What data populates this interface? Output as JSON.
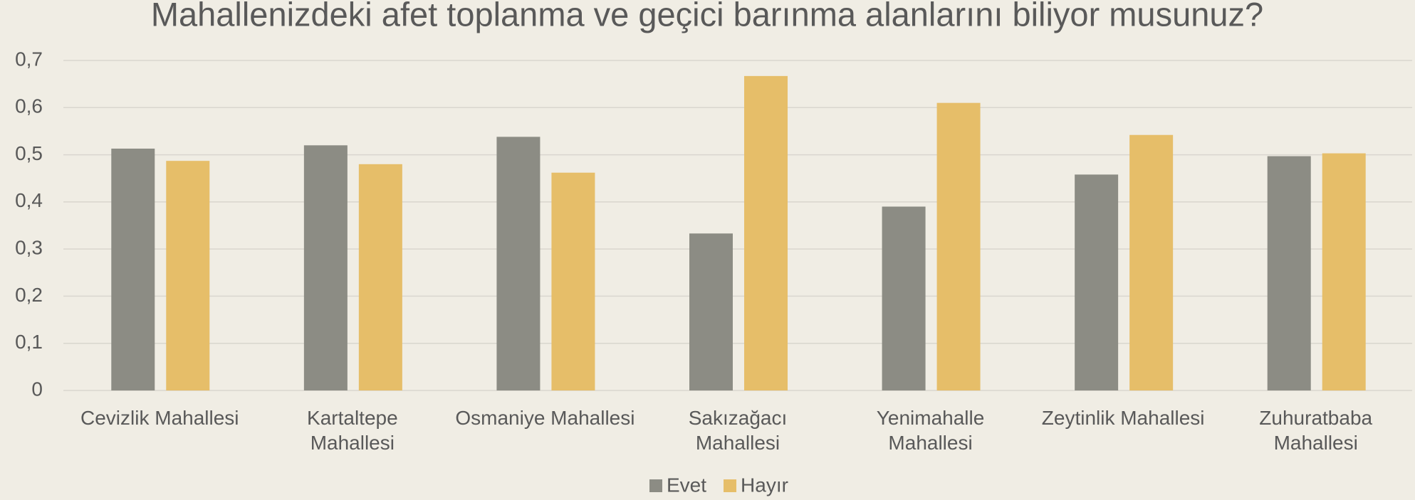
{
  "chart_data": {
    "type": "bar",
    "title": "Mahallenizdeki afet toplanma ve geçici barınma alanlarını biliyor musunuz?",
    "categories": [
      "Cevizlik Mahallesi",
      "Kartaltepe\nMahallesi",
      "Osmaniye Mahallesi",
      "Sakızağacı\nMahallesi",
      "Yenimahalle\nMahallesi",
      "Zeytinlik Mahallesi",
      "Zuhuratbaba\nMahallesi"
    ],
    "series": [
      {
        "name": "Evet",
        "color": "#8c8c84",
        "values": [
          0.513,
          0.52,
          0.538,
          0.333,
          0.39,
          0.458,
          0.497
        ]
      },
      {
        "name": "Hayır",
        "color": "#e6be69",
        "values": [
          0.487,
          0.48,
          0.462,
          0.667,
          0.61,
          0.542,
          0.503
        ]
      }
    ],
    "ylim": [
      0,
      0.7
    ],
    "yticks": [
      0,
      {
        "value": 0.1,
        "label": "0,1"
      },
      {
        "value": 0.2,
        "label": "0,2"
      },
      {
        "value": 0.3,
        "label": "0,3"
      },
      {
        "value": 0.4,
        "label": "0,4"
      },
      {
        "value": 0.5,
        "label": "0,5"
      },
      {
        "value": 0.6,
        "label": "0,6"
      },
      {
        "value": 0.7,
        "label": "0,7"
      }
    ],
    "grid": true,
    "legend": "bottom"
  }
}
